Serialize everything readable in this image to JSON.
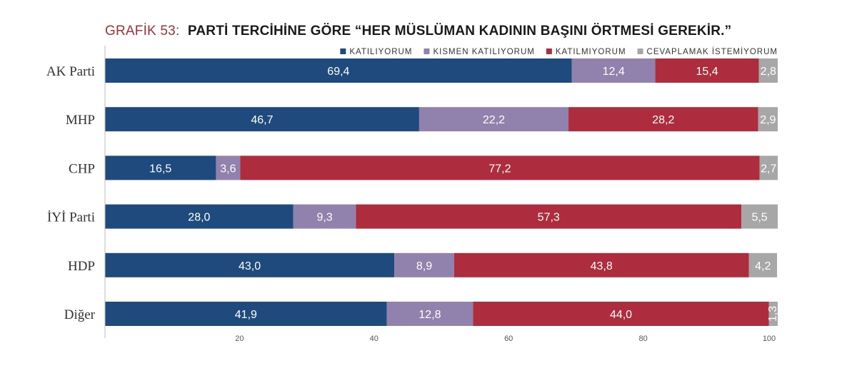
{
  "title_prefix": "GRAFİK 53:",
  "title_main": "PARTİ TERCİHİNE GÖRE “HER MÜSLÜMAN KADININ BAŞINI ÖRTMESİ GEREKİR.”",
  "colors": {
    "title_prefix": "#a0303a",
    "title_main": "#1a1a1a",
    "series": [
      "#1f4a7e",
      "#9181ad",
      "#ad2d3e",
      "#a7a7a7"
    ],
    "muted_category": "#8a8a8a",
    "axis": "#bbbbbb"
  },
  "chart_data": {
    "type": "bar",
    "orientation": "horizontal",
    "stacked": true,
    "categories": [
      "AK Parti",
      "MHP",
      "CHP",
      "İYİ Parti",
      "HDP",
      "Diğer"
    ],
    "series": [
      {
        "name": "KATILIYORUM",
        "values": [
          69.4,
          46.7,
          16.5,
          28.0,
          43.0,
          41.9
        ],
        "labels": [
          "69,4",
          "46,7",
          "16,5",
          "28,0",
          "43,0",
          "41,9"
        ]
      },
      {
        "name": "KISMEN KATILIYORUM",
        "values": [
          12.4,
          22.2,
          3.6,
          9.3,
          8.9,
          12.8
        ],
        "labels": [
          "12,4",
          "22,2",
          "3,6",
          "9,3",
          "8,9",
          "12,8"
        ]
      },
      {
        "name": "KATILMIYORUM",
        "values": [
          15.4,
          28.2,
          77.2,
          57.3,
          43.8,
          44.0
        ],
        "labels": [
          "15,4",
          "28,2",
          "77,2",
          "57,3",
          "43,8",
          "44,0"
        ]
      },
      {
        "name": "CEVAPLAMAK İSTEMİYORUM",
        "values": [
          2.8,
          2.9,
          2.7,
          5.5,
          4.2,
          1.3
        ],
        "labels": [
          "2,8",
          "2,9",
          "2,7",
          "5,5",
          "4,2",
          "1,3"
        ]
      }
    ],
    "xlim": [
      0,
      100
    ],
    "xticks": [
      20,
      40,
      60,
      80,
      100
    ],
    "legend_position": "top-right",
    "grid": false
  }
}
